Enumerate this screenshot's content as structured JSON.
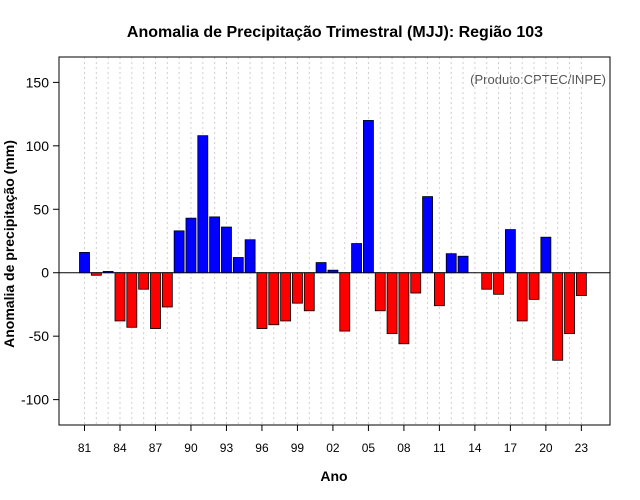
{
  "chart_data": {
    "type": "bar",
    "title": "Anomalia de Precipitação Trimestral (MJJ): Região 103",
    "xlabel": "Ano",
    "ylabel": "Anomalia de precipitação (mm)",
    "annotation": "(Produto:CPTEC/INPE)",
    "ylim": [
      -120,
      170
    ],
    "yticks": [
      -100,
      -50,
      0,
      50,
      100,
      150
    ],
    "grid": true,
    "positive_color": "#0000ff",
    "negative_color": "#ff0000",
    "years": [
      1981,
      1982,
      1983,
      1984,
      1985,
      1986,
      1987,
      1988,
      1989,
      1990,
      1991,
      1992,
      1993,
      1994,
      1995,
      1996,
      1997,
      1998,
      1999,
      2000,
      2001,
      2002,
      2003,
      2004,
      2005,
      2006,
      2007,
      2008,
      2009,
      2010,
      2011,
      2012,
      2013,
      2014,
      2015,
      2016,
      2017,
      2018,
      2019,
      2020,
      2021,
      2022,
      2023
    ],
    "values": [
      16,
      -2,
      1,
      -38,
      -43,
      -13,
      -44,
      -27,
      33,
      43,
      108,
      44,
      36,
      12,
      26,
      -44,
      -41,
      -38,
      -24,
      -30,
      8,
      2,
      -46,
      23,
      120,
      -30,
      -48,
      -56,
      -16,
      60,
      -26,
      15,
      13,
      0,
      -13,
      -17,
      34,
      -38,
      -21,
      28,
      -69,
      -48,
      -18
    ],
    "xtick_labels": [
      {
        "year": 1981,
        "label": "81"
      },
      {
        "year": 1984,
        "label": "84"
      },
      {
        "year": 1987,
        "label": "87"
      },
      {
        "year": 1990,
        "label": "90"
      },
      {
        "year": 1993,
        "label": "93"
      },
      {
        "year": 1996,
        "label": "96"
      },
      {
        "year": 1999,
        "label": "99"
      },
      {
        "year": 2002,
        "label": "02"
      },
      {
        "year": 2005,
        "label": "05"
      },
      {
        "year": 2008,
        "label": "08"
      },
      {
        "year": 2011,
        "label": "11"
      },
      {
        "year": 2014,
        "label": "14"
      },
      {
        "year": 2017,
        "label": "17"
      },
      {
        "year": 2020,
        "label": "20"
      },
      {
        "year": 2023,
        "label": "23"
      }
    ]
  }
}
